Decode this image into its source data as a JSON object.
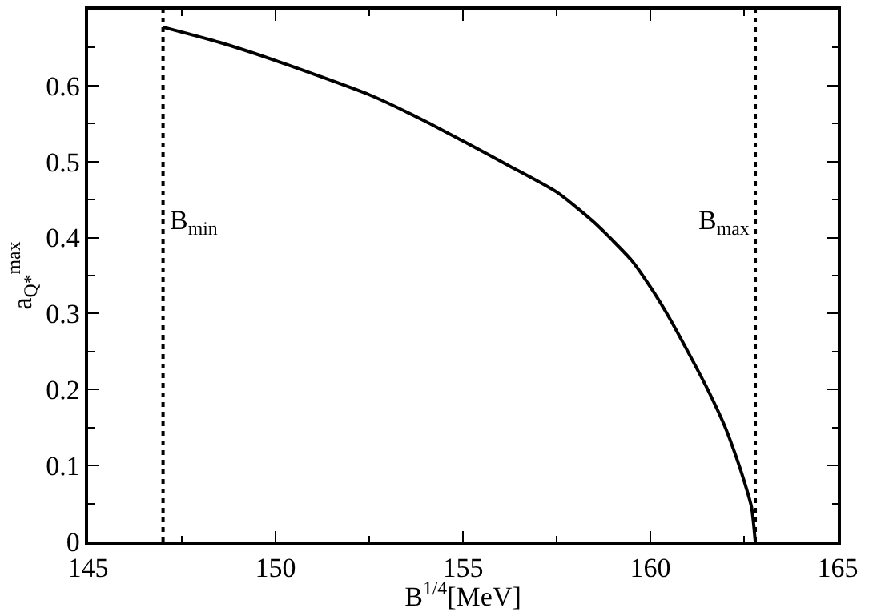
{
  "chart_data": {
    "type": "line",
    "xlabel": "B$^{1/4}$[MeV]",
    "ylabel": "a$_{Q*}$$^{max}$",
    "xlim": [
      145,
      165
    ],
    "xticks": [
      145,
      150,
      155,
      160,
      165
    ],
    "ylim": [
      0,
      0.7
    ],
    "yticks": [
      0,
      0.1,
      0.2,
      0.3,
      0.4,
      0.5,
      0.6
    ],
    "x": [
      147.0,
      148.5,
      150,
      152.5,
      154,
      155,
      156.25,
      157.5,
      158.5,
      159.5,
      160,
      160.5,
      161,
      161.5,
      162,
      162.3,
      162.5,
      162.7,
      162.8
    ],
    "series": [
      {
        "color": "#000000",
        "values": [
          0.677,
          0.657,
          0.633,
          0.588,
          0.553,
          0.527,
          0.494,
          0.46,
          0.42,
          0.37,
          0.335,
          0.295,
          0.25,
          0.203,
          0.15,
          0.11,
          0.08,
          0.045,
          0.0
        ]
      }
    ],
    "ref_lines": [
      {
        "axis": "x",
        "value": 147.0,
        "label": "B$_{min}$",
        "color": "#000000",
        "line_style": "dotted"
      },
      {
        "axis": "x",
        "value": 162.8,
        "label": "B$_{max}$",
        "color": "#000000",
        "line_style": "dotted"
      }
    ],
    "legend": false,
    "marker": "none",
    "line_style": "solid"
  }
}
